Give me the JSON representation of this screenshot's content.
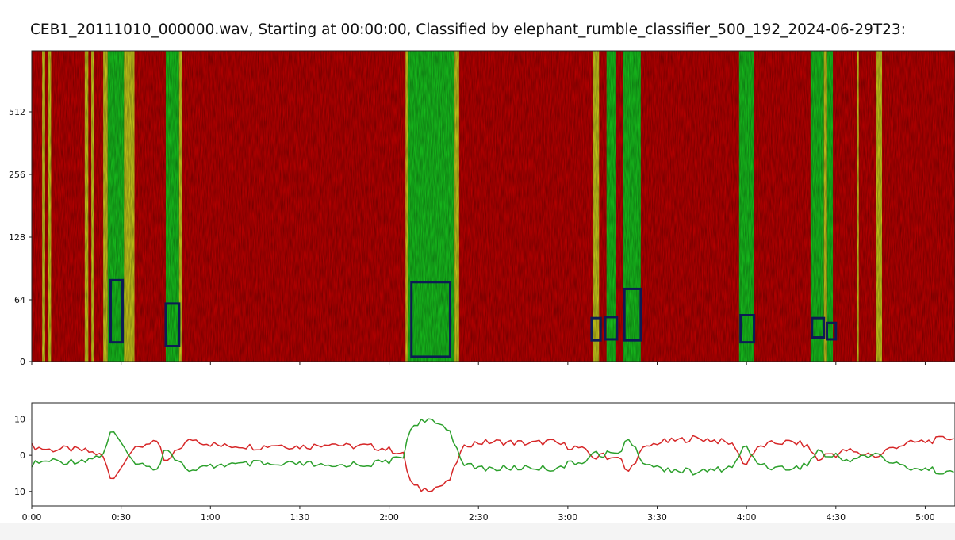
{
  "figure": {
    "title": "CEB1_20111010_000000.wav, Starting at 00:00:00, Classified by elephant_rumble_classifier_500_192_2024-06-29T23:"
  },
  "chart_data": [
    {
      "type": "heatmap",
      "kind": "spectrogram",
      "x_unit": "seconds",
      "xlim": [
        0,
        310
      ],
      "yscale": "log",
      "yticks": [
        0,
        64,
        128,
        256,
        512
      ],
      "ytick_labels": [
        "0",
        "64",
        "128",
        "256",
        "512"
      ],
      "ylim": [
        0,
        900
      ],
      "background_color": "#b30000",
      "colors": {
        "rumble": "#16b81c",
        "edge": "#c2c21a",
        "background": "#b30000",
        "box": "#0d1b55"
      },
      "bands": [
        {
          "class": "edge",
          "x0": 3.5,
          "x1": 4.5
        },
        {
          "class": "edge",
          "x0": 5.5,
          "x1": 6.5
        },
        {
          "class": "edge",
          "x0": 17.8,
          "x1": 19.0
        },
        {
          "class": "edge",
          "x0": 20.0,
          "x1": 20.8
        },
        {
          "class": "edge",
          "x0": 24.0,
          "x1": 25.5
        },
        {
          "class": "rumble",
          "x0": 25.5,
          "x1": 31.0
        },
        {
          "class": "edge",
          "x0": 31.0,
          "x1": 34.5
        },
        {
          "class": "rumble",
          "x0": 45.0,
          "x1": 49.5
        },
        {
          "class": "edge",
          "x0": 49.5,
          "x1": 50.5
        },
        {
          "class": "edge",
          "x0": 125.5,
          "x1": 126.5
        },
        {
          "class": "rumble",
          "x0": 126.5,
          "x1": 142.0
        },
        {
          "class": "edge",
          "x0": 142.0,
          "x1": 143.5
        },
        {
          "class": "edge",
          "x0": 188.5,
          "x1": 190.5
        },
        {
          "class": "rumble",
          "x0": 193.0,
          "x1": 196.0
        },
        {
          "class": "rumble",
          "x0": 198.5,
          "x1": 204.5
        },
        {
          "class": "rumble",
          "x0": 237.5,
          "x1": 242.5
        },
        {
          "class": "rumble",
          "x0": 261.5,
          "x1": 266.0
        },
        {
          "class": "edge",
          "x0": 266.0,
          "x1": 266.8
        },
        {
          "class": "rumble",
          "x0": 266.8,
          "x1": 269.0
        },
        {
          "class": "edge",
          "x0": 277.0,
          "x1": 277.7
        },
        {
          "class": "edge",
          "x0": 283.5,
          "x1": 285.5
        }
      ],
      "detection_boxes": [
        {
          "t0": 26.5,
          "t1": 30.5,
          "f0": 20,
          "f1": 84
        },
        {
          "t0": 45.0,
          "t1": 49.5,
          "f0": 16,
          "f1": 60
        },
        {
          "t0": 127.5,
          "t1": 140.5,
          "f0": 5,
          "f1": 82
        },
        {
          "t0": 188.0,
          "t1": 191.0,
          "f0": 22,
          "f1": 45
        },
        {
          "t0": 192.5,
          "t1": 196.5,
          "f0": 23,
          "f1": 46
        },
        {
          "t0": 199.0,
          "t1": 204.5,
          "f0": 22,
          "f1": 75
        },
        {
          "t0": 238.0,
          "t1": 242.5,
          "f0": 20,
          "f1": 48
        },
        {
          "t0": 262.0,
          "t1": 266.0,
          "f0": 25,
          "f1": 45
        },
        {
          "t0": 267.0,
          "t1": 270.0,
          "f0": 23,
          "f1": 40
        }
      ]
    },
    {
      "type": "line",
      "xlim": [
        0,
        310
      ],
      "ylim": [
        -14,
        14.5
      ],
      "yticks": [
        10,
        0,
        -10
      ],
      "ytick_labels": [
        "10",
        "0",
        "−10"
      ],
      "xticks": [
        0,
        30,
        60,
        90,
        120,
        150,
        180,
        210,
        240,
        270,
        300
      ],
      "xtick_labels": [
        "0:00",
        "0:30",
        "1:00",
        "1:30",
        "2:00",
        "2:30",
        "3:00",
        "3:30",
        "4:00",
        "4:30",
        "5:00"
      ],
      "series": [
        {
          "color": "#d62728",
          "points": [
            [
              0,
              2.5
            ],
            [
              6,
              1.5
            ],
            [
              12,
              1.8
            ],
            [
              18,
              1.2
            ],
            [
              22,
              0.4
            ],
            [
              24,
              -0.5
            ],
            [
              25.5,
              -4
            ],
            [
              26.5,
              -6.5
            ],
            [
              28,
              -5.5
            ],
            [
              30,
              -3.5
            ],
            [
              31.5,
              -0.5
            ],
            [
              33,
              1
            ],
            [
              36,
              2
            ],
            [
              39,
              3.5
            ],
            [
              41,
              4
            ],
            [
              43,
              2
            ],
            [
              44.5,
              -1.5
            ],
            [
              45.5,
              -2
            ],
            [
              47,
              -0.5
            ],
            [
              49,
              1.5
            ],
            [
              51,
              3
            ],
            [
              54,
              4.5
            ],
            [
              58,
              3.5
            ],
            [
              64,
              2.5
            ],
            [
              70,
              2.7
            ],
            [
              76,
              2.2
            ],
            [
              82,
              3
            ],
            [
              88,
              2.4
            ],
            [
              94,
              2.5
            ],
            [
              100,
              3.5
            ],
            [
              106,
              2.4
            ],
            [
              112,
              2.6
            ],
            [
              118,
              1.9
            ],
            [
              122,
              1.2
            ],
            [
              125,
              0
            ],
            [
              126.5,
              -6
            ],
            [
              128,
              -8.5
            ],
            [
              131,
              -9.5
            ],
            [
              135,
              -9
            ],
            [
              139,
              -8
            ],
            [
              141,
              -6
            ],
            [
              142.5,
              -2
            ],
            [
              144,
              0.5
            ],
            [
              146,
              3
            ],
            [
              150,
              3.5
            ],
            [
              156,
              3.7
            ],
            [
              162,
              3.5
            ],
            [
              168,
              3.3
            ],
            [
              174,
              3.8
            ],
            [
              180,
              2.5
            ],
            [
              184,
              2
            ],
            [
              186,
              1
            ],
            [
              188,
              0
            ],
            [
              190,
              -1
            ],
            [
              192,
              0.5
            ],
            [
              194,
              -1
            ],
            [
              196,
              0.2
            ],
            [
              198,
              -1.5
            ],
            [
              199.5,
              -5
            ],
            [
              201,
              -4
            ],
            [
              203,
              -1
            ],
            [
              205,
              1.5
            ],
            [
              210,
              3.5
            ],
            [
              216,
              4
            ],
            [
              222,
              4.7
            ],
            [
              228,
              4.3
            ],
            [
              234,
              3.4
            ],
            [
              237,
              2
            ],
            [
              238.5,
              -2.5
            ],
            [
              240,
              -2
            ],
            [
              242,
              0.5
            ],
            [
              245,
              2.5
            ],
            [
              250,
              3.5
            ],
            [
              256,
              3.6
            ],
            [
              260,
              2.7
            ],
            [
              262,
              1
            ],
            [
              264,
              -1.5
            ],
            [
              266,
              -0.2
            ],
            [
              268,
              0.6
            ],
            [
              270,
              0.2
            ],
            [
              274,
              1.5
            ],
            [
              278,
              0.2
            ],
            [
              282,
              0.5
            ],
            [
              284,
              -1
            ],
            [
              286,
              1
            ],
            [
              290,
              2.5
            ],
            [
              296,
              3.5
            ],
            [
              302,
              4
            ],
            [
              308,
              4.8
            ],
            [
              310,
              5
            ]
          ]
        },
        {
          "color": "#2ca02c",
          "points": [
            [
              0,
              -2.5
            ],
            [
              6,
              -1.5
            ],
            [
              12,
              -1.8
            ],
            [
              18,
              -1.2
            ],
            [
              22,
              -0.4
            ],
            [
              24,
              0.5
            ],
            [
              25.5,
              4
            ],
            [
              26.5,
              6.5
            ],
            [
              28,
              5.5
            ],
            [
              30,
              3.5
            ],
            [
              31.5,
              0.5
            ],
            [
              33,
              -1
            ],
            [
              36,
              -2
            ],
            [
              39,
              -3.5
            ],
            [
              41,
              -4
            ],
            [
              43,
              -2
            ],
            [
              44.5,
              1.5
            ],
            [
              45.5,
              2
            ],
            [
              47,
              0.5
            ],
            [
              49,
              -1.5
            ],
            [
              51,
              -3
            ],
            [
              54,
              -4.5
            ],
            [
              58,
              -3.5
            ],
            [
              64,
              -2.5
            ],
            [
              70,
              -2.7
            ],
            [
              76,
              -2.2
            ],
            [
              82,
              -3
            ],
            [
              88,
              -2.4
            ],
            [
              94,
              -2.5
            ],
            [
              100,
              -3.5
            ],
            [
              106,
              -2.4
            ],
            [
              112,
              -2.6
            ],
            [
              118,
              -1.9
            ],
            [
              122,
              -1.2
            ],
            [
              125,
              0
            ],
            [
              126.5,
              6
            ],
            [
              128,
              8.5
            ],
            [
              131,
              9.5
            ],
            [
              135,
              9
            ],
            [
              139,
              8
            ],
            [
              141,
              6
            ],
            [
              142.5,
              2
            ],
            [
              144,
              -0.5
            ],
            [
              146,
              -3
            ],
            [
              150,
              -3.5
            ],
            [
              156,
              -3.7
            ],
            [
              162,
              -3.5
            ],
            [
              168,
              -3.3
            ],
            [
              174,
              -3.8
            ],
            [
              180,
              -2.5
            ],
            [
              184,
              -2
            ],
            [
              186,
              -1
            ],
            [
              188,
              0
            ],
            [
              190,
              1
            ],
            [
              192,
              -0.5
            ],
            [
              194,
              1
            ],
            [
              196,
              -0.2
            ],
            [
              198,
              1.5
            ],
            [
              199.5,
              5
            ],
            [
              201,
              4
            ],
            [
              203,
              1
            ],
            [
              205,
              -1.5
            ],
            [
              210,
              -3.5
            ],
            [
              216,
              -4
            ],
            [
              222,
              -4.7
            ],
            [
              228,
              -4.3
            ],
            [
              234,
              -3.4
            ],
            [
              237,
              -2
            ],
            [
              238.5,
              2.5
            ],
            [
              240,
              2
            ],
            [
              242,
              -0.5
            ],
            [
              245,
              -2.5
            ],
            [
              250,
              -3.5
            ],
            [
              256,
              -3.6
            ],
            [
              260,
              -2.7
            ],
            [
              262,
              -1
            ],
            [
              264,
              1.5
            ],
            [
              266,
              0.2
            ],
            [
              268,
              -0.6
            ],
            [
              270,
              -0.2
            ],
            [
              274,
              -1.5
            ],
            [
              278,
              -0.2
            ],
            [
              282,
              -0.5
            ],
            [
              284,
              1
            ],
            [
              286,
              -1
            ],
            [
              290,
              -2.5
            ],
            [
              296,
              -3.5
            ],
            [
              302,
              -4
            ],
            [
              308,
              -4.8
            ],
            [
              310,
              -5
            ]
          ]
        }
      ]
    }
  ]
}
